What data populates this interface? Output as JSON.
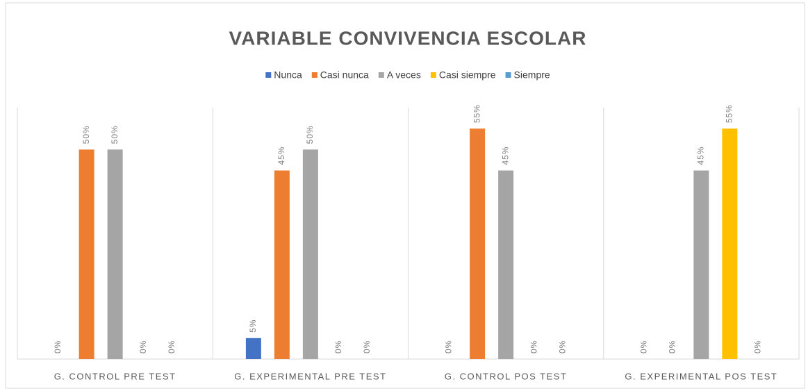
{
  "chart_data": {
    "type": "bar",
    "title": "VARIABLE CONVIVENCIA ESCOLAR",
    "categories": [
      "G. CONTROL PRE TEST",
      "G. EXPERIMENTAL PRE TEST",
      "G. CONTROL POS TEST",
      "G. EXPERIMENTAL POS TEST"
    ],
    "series": [
      {
        "name": "Nunca",
        "color": "#4472c4",
        "values": [
          0,
          5,
          0,
          0
        ],
        "value_labels": [
          "0%",
          "5%",
          "0%",
          "0%"
        ]
      },
      {
        "name": "Casi nunca",
        "color": "#ed7d31",
        "values": [
          50,
          45,
          55,
          0
        ],
        "value_labels": [
          "50%",
          "45%",
          "55%",
          "0%"
        ]
      },
      {
        "name": "A veces",
        "color": "#a5a5a5",
        "values": [
          50,
          50,
          45,
          45
        ],
        "value_labels": [
          "50%",
          "50%",
          "45%",
          "45%"
        ]
      },
      {
        "name": "Casi siempre",
        "color": "#ffc000",
        "values": [
          0,
          0,
          0,
          55
        ],
        "value_labels": [
          "0%",
          "0%",
          "0%",
          "55%"
        ]
      },
      {
        "name": "Siempre",
        "color": "#5b9bd5",
        "values": [
          0,
          0,
          0,
          0
        ],
        "value_labels": [
          "0%",
          "0%",
          "0%",
          "0%"
        ]
      }
    ],
    "ylim": [
      0,
      60
    ],
    "legend": "top"
  }
}
